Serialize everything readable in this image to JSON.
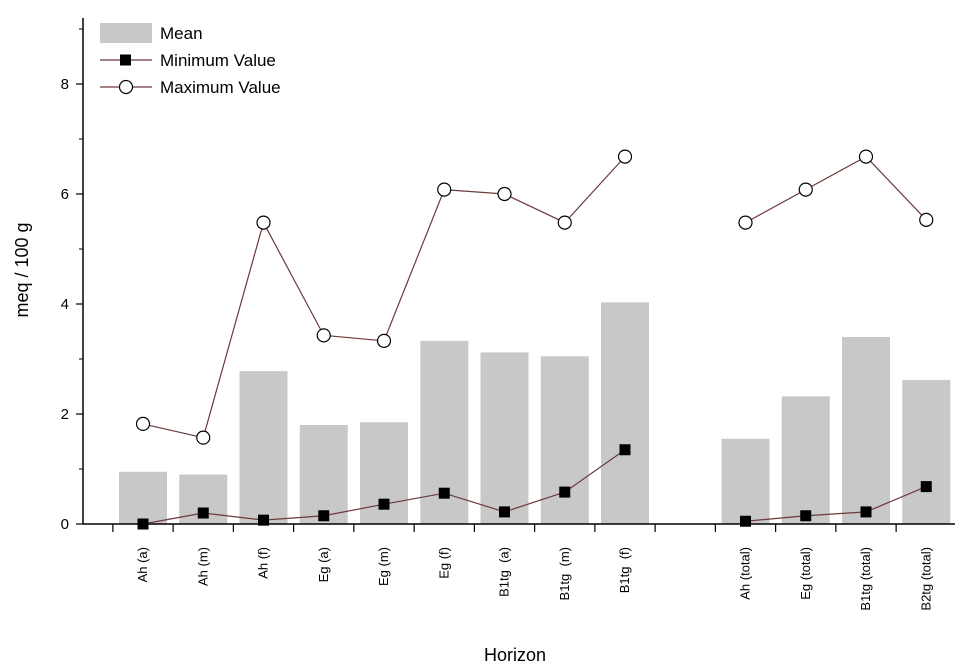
{
  "chart_data": {
    "type": "bar",
    "categories": [
      "Ah (a)",
      "Ah (m)",
      "Ah (f)",
      "Eg (a)",
      "Eg (m)",
      "Eg (f)",
      "B1tg  (a)",
      "B1tg  (m)",
      "B1tg  (f)",
      "",
      "Ah (total)",
      "Eg (total)",
      "B1tg (total)",
      "B2tg (total)"
    ],
    "series": [
      {
        "name": "Mean",
        "kind": "bar",
        "color": "#c8c8c8",
        "values": [
          0.95,
          0.9,
          2.78,
          1.8,
          1.85,
          3.33,
          3.12,
          3.05,
          4.03,
          null,
          1.55,
          2.32,
          3.4,
          2.62
        ]
      },
      {
        "name": "Minimum Value",
        "kind": "line",
        "marker": "filled-square",
        "color": "#000000",
        "line_color": "#6b3a3a",
        "values": [
          0.0,
          0.2,
          0.07,
          0.15,
          0.36,
          0.56,
          0.22,
          0.58,
          1.35,
          null,
          0.05,
          0.15,
          0.22,
          0.68
        ]
      },
      {
        "name": "Maximum Value",
        "kind": "line",
        "marker": "open-circle",
        "color": "#000000",
        "line_color": "#6b3a3a",
        "values": [
          1.82,
          1.57,
          5.48,
          3.43,
          3.33,
          6.08,
          6.0,
          5.48,
          6.68,
          null,
          5.48,
          6.08,
          6.68,
          5.53
        ]
      }
    ],
    "title": "",
    "xlabel": "Horizon",
    "ylabel": "meq / 100 g",
    "ylim": [
      0,
      9.2
    ],
    "yticks": [
      0,
      2,
      4,
      6,
      8
    ],
    "yticklabels": [
      "0",
      "2",
      "4",
      "6",
      "8"
    ],
    "grid": false,
    "legend_position": "top-left"
  }
}
